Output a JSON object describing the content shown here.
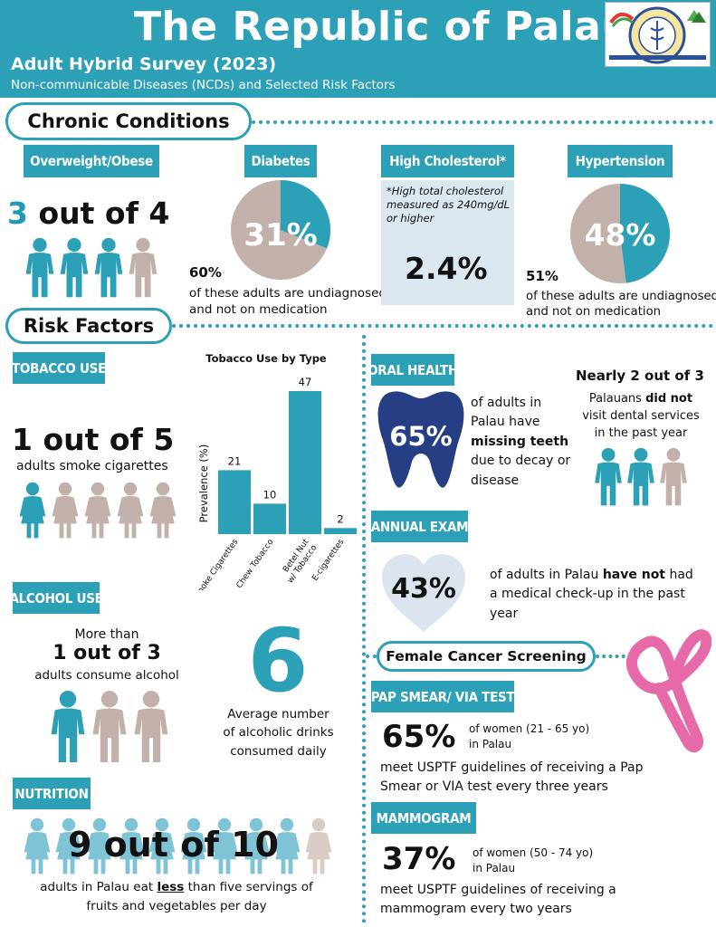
{
  "header": {
    "title": "The Republic of Palau",
    "subtitle": "Adult Hybrid Survey (2023)",
    "subsubtitle": "Non-communicable Diseases (NCDs) and Selected Risk Factors",
    "logo": "ministry-of-health-seal"
  },
  "colors": {
    "teal": "#2ba0b7",
    "tan": "#c2b1aa",
    "light_blue": "#dbe8f0",
    "pink": "#e76aa8"
  },
  "chronic": {
    "section_title": "Chronic Conditions",
    "overweight": {
      "label": "Overweight/Obese",
      "stat_num": "3",
      "stat_rest": "out of 4",
      "highlighted": 3,
      "total": 4
    },
    "diabetes": {
      "label": "Diabetes",
      "percent": "31%",
      "value": 31,
      "undiagnosed_pct": "60%",
      "undiagnosed_text1": "of these adults are undiagnosed",
      "undiagnosed_text2": "and not on medication"
    },
    "cholesterol": {
      "label": "High Cholesterol*",
      "note1": "*High total cholesterol",
      "note2": "measured as 240mg/dL",
      "note3": "or higher",
      "percent": "2.4%"
    },
    "hypertension": {
      "label": "Hypertension",
      "percent": "48%",
      "value": 48,
      "undiagnosed_pct": "51%",
      "undiagnosed_text1": "of these adults are undiagnosed",
      "undiagnosed_text2": "and not on medication"
    }
  },
  "risk": {
    "section_title": "Risk Factors",
    "tobacco": {
      "label": "TOBACCO USE",
      "stat": "1 out of 5",
      "text": "adults smoke cigarettes",
      "highlighted": 1,
      "total": 5
    },
    "alcohol": {
      "label": "ALCOHOL USE",
      "pre": "More than",
      "stat": "1 out of 3",
      "text": "adults consume alcohol",
      "highlighted": 1,
      "total": 3,
      "big_number": "6",
      "avg_text1": "Average number",
      "avg_text2": "of alcoholic drinks",
      "avg_text3": "consumed daily"
    },
    "nutrition": {
      "label": "NUTRITION",
      "stat": "9 out of 10",
      "text1_a": "adults in Palau eat ",
      "text1_b": "less",
      "text1_c": " than five servings of",
      "text2": "fruits and vegetables per day",
      "highlighted": 9,
      "total": 10
    },
    "oral": {
      "label": "ORAL HEALTH",
      "percent": "65%",
      "t1": "of adults in",
      "t2": "Palau have",
      "t3": "missing teeth",
      "t4": "due to decay or",
      "t5": "disease",
      "nearly": "Nearly 2 out of 3",
      "n1a": "Palauans ",
      "n1b": "did not",
      "n2": "visit dental services",
      "n3": "in the past year",
      "highlighted": 2,
      "total": 3
    },
    "exam": {
      "label": "ANNUAL EXAM",
      "percent": "43%",
      "t1a": "of adults in Palau ",
      "t1b": "have not",
      "t1c": " had",
      "t2": "a medical check-up in the past",
      "t3": "year"
    },
    "female": {
      "section_title": "Female Cancer Screening",
      "pap_label": "PAP SMEAR/ VIA TEST",
      "pap_percent": "65%",
      "pap_age1": "of women (21 - 65 yo)",
      "pap_age2": "in Palau",
      "pap_t1": "meet USPTF guidelines of receiving a Pap",
      "pap_t2": "Smear or VIA test every three years",
      "mam_label": "MAMMOGRAM",
      "mam_percent": "37%",
      "mam_age1": "of women (50 - 74 yo)",
      "mam_age2": "in Palau",
      "mam_t1": "meet USPTF guidelines of receiving a",
      "mam_t2": "mammogram every two years"
    }
  },
  "chart_data": {
    "type": "bar",
    "title": "Tobacco Use by Type",
    "ylabel": "Prevalence (%)",
    "categories": [
      "Smoke Cigarettes",
      "Chew Tobacco",
      "Betel Nut w/ Tobacco",
      "E-cigarettes"
    ],
    "category_lines": [
      [
        "Smoke Cigarettes"
      ],
      [
        "Chew Tobacco"
      ],
      [
        "Betel Nut",
        "w/ Tobacco"
      ],
      [
        "E-cigarettes"
      ]
    ],
    "values": [
      21,
      10,
      47,
      2
    ],
    "ylim": [
      0,
      50
    ]
  }
}
